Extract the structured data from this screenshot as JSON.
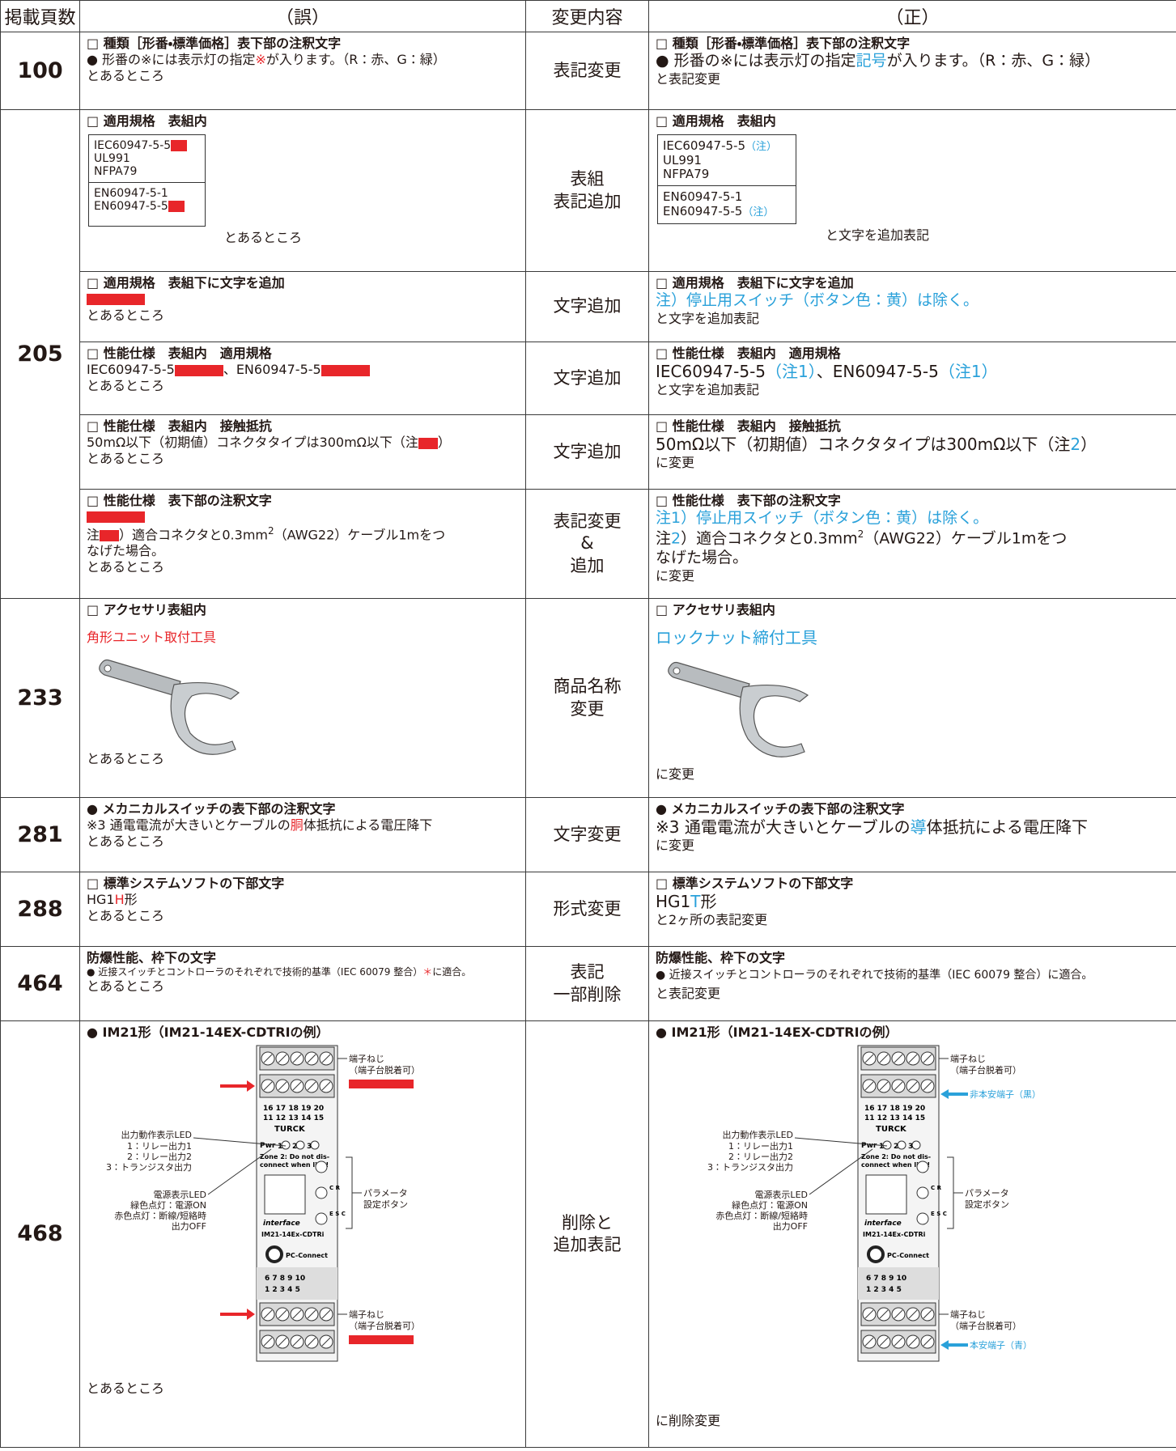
{
  "header": {
    "page": "掲載頁数",
    "wrong": "（誤）",
    "change": "変更内容",
    "correct": "（正）"
  },
  "rows": [
    {
      "page": "100",
      "change": [
        "表記変更"
      ],
      "wrong": [
        "□ 種類［形番・標準価格］表下部の注釈文字",
        "● 形番の※には表示灯の指定",
        "※",
        "が入ります。（R：赤、G：緑）",
        "とあるところ"
      ],
      "correct": [
        "□ 種類［形番・標準価格］表下部の注釈文字",
        "● 形番の※には表示灯の指定",
        "記号",
        "が入ります。（R：赤、G：緑）",
        "と表記変更"
      ]
    },
    {
      "page": "205",
      "items": [
        {
          "change": [
            "表組",
            "表記追加"
          ],
          "wrong": [
            "□ 適用規格　表組内",
            "IEC60947-5-5",
            "UL991",
            "NFPA79",
            "EN60947-5-1",
            "EN60947-5-5",
            "とあるところ"
          ],
          "correct": [
            "□ 適用規格　表組内",
            "IEC60947-5-5",
            "（注）",
            "UL991",
            "NFPA79",
            "EN60947-5-1",
            "EN60947-5-5",
            "（注）",
            "と文字を追加表記"
          ]
        },
        {
          "change": [
            "文字追加"
          ],
          "wrong": [
            "□ 適用規格　表組下に文字を追加",
            "とあるところ"
          ],
          "correct": [
            "□ 適用規格　表組下に文字を追加",
            "注）停止用スイッチ（ボタン色：黄）は除く。",
            "と文字を追加表記"
          ]
        },
        {
          "change": [
            "文字追加"
          ],
          "wrong": [
            "□ 性能仕様　表組内　適用規格",
            "IEC60947-5-5",
            "、EN60947-5-5",
            "とあるところ"
          ],
          "correct": [
            "□ 性能仕様　表組内　適用規格",
            "IEC60947-5-5",
            "（注1）",
            "、EN60947-5-5",
            "（注1）",
            "と文字を追加表記"
          ]
        },
        {
          "change": [
            "文字追加"
          ],
          "wrong": [
            "□ 性能仕様　表組内　接触抵抗",
            "50mΩ以下（初期値）コネクタタイプは300mΩ以下（注",
            "）",
            "とあるところ"
          ],
          "correct": [
            "□ 性能仕様　表組内　接触抵抗",
            "50mΩ以下（初期値）コネクタタイプは300mΩ以下（注",
            "2",
            "）",
            "に変更"
          ]
        },
        {
          "change": [
            "表記変更",
            "&",
            "追加"
          ],
          "wrong": [
            "□ 性能仕様　表下部の注釈文字",
            "注",
            "）適合コネクタと0.3mm",
            "2",
            "（AWG22）ケーブル1mをつ",
            "なげた場合。",
            "とあるところ"
          ],
          "correct": [
            "□ 性能仕様　表下部の注釈文字",
            "注1）停止用スイッチ（ボタン色：黄）は除く。",
            "注",
            "2",
            "）適合コネクタと0.3mm",
            "2",
            "（AWG22）ケーブル1mをつ",
            "なげた場合。",
            "に変更"
          ]
        }
      ]
    },
    {
      "page": "233",
      "change": [
        "商品名称",
        "変更"
      ],
      "wrong": [
        "□ アクセサリ表組内",
        "角形ユニット取付工具",
        "とあるところ"
      ],
      "correct": [
        "□ アクセサリ表組内",
        "ロックナット締付工具",
        "に変更"
      ]
    },
    {
      "page": "281",
      "change": [
        "文字変更"
      ],
      "wrong": [
        "● メカニカルスイッチの表下部の注釈文字",
        "※3 通電電流が大きいとケーブルの",
        "胴",
        "体抵抗による電圧降下",
        "とあるところ"
      ],
      "correct": [
        "● メカニカルスイッチの表下部の注釈文字",
        "※3 通電電流が大きいとケーブルの",
        "導",
        "体抵抗による電圧降下",
        "に変更"
      ]
    },
    {
      "page": "288",
      "change": [
        "形式変更"
      ],
      "wrong": [
        "□ 標準システムソフトの下部文字",
        "HG1",
        "H",
        "形",
        "とあるところ"
      ],
      "correct": [
        "□ 標準システムソフトの下部文字",
        "HG1",
        "T",
        "形",
        "と2ヶ所の表記変更"
      ]
    },
    {
      "page": "464",
      "change": [
        "表記",
        "一部削除"
      ],
      "wrong": [
        "防爆性能、枠下の文字",
        "● 近接スイッチとコントローラのそれぞれで技術的基準（IEC 60079 整合）",
        "＊",
        "に適合。",
        "とあるところ"
      ],
      "correct": [
        "防爆性能、枠下の文字",
        "● 近接スイッチとコントローラのそれぞれで技術的基準（IEC 60079 整合）に適合。",
        "と表記変更"
      ]
    },
    {
      "page": "468",
      "change": [
        "削除と",
        "追加表記"
      ],
      "wrong": [
        "● IM21形（IM21-14EX-CDTRIの例）",
        "とあるところ"
      ],
      "correct": [
        "● IM21形（IM21-14EX-CDTRIの例）",
        "に削除変更"
      ],
      "diagram": {
        "terminal_screw": [
          "端子ねじ",
          "（端子台脱着可）"
        ],
        "output_led": [
          "出力動作表示LED",
          "1：リレー出力1",
          "2：リレー出力2",
          "3：トランジスタ出力"
        ],
        "power_led": [
          "電源表示LED",
          "緑色点灯：電源ON",
          "赤色点灯：断線/短絡時",
          "出力OFF"
        ],
        "param": [
          "パラメータ",
          "設定ボタン"
        ],
        "device": [
          "16 17 18 19 20",
          "11 12 13 14 15",
          "TURCK",
          "Pwr",
          "1",
          "2",
          "3",
          "Zone 2: Do not dis-",
          "connect when live!",
          "C\nR",
          "E\nS\nC",
          "interface",
          "IM21-14Ex-CDTRi",
          "PC-Connect",
          "6 7 8 9 10",
          "1 2 3 4 5"
        ],
        "non_ia": "非本安端子（黒）",
        "ia": "本安端子（青）"
      }
    }
  ]
}
